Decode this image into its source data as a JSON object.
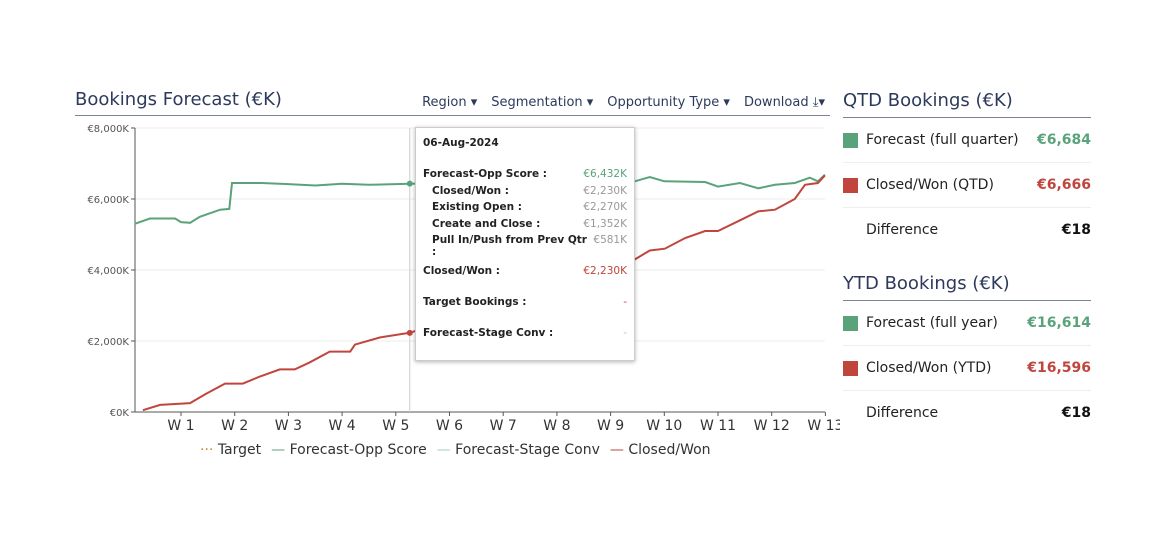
{
  "header": {
    "title": "Bookings Forecast (€K)",
    "filters": [
      "Region ▾",
      "Segmentation ▾",
      "Opportunity Type ▾",
      "Download ⤓▾"
    ]
  },
  "tooltip": {
    "date": "06-Aug-2024",
    "rows": [
      {
        "label": "Forecast-Opp Score :",
        "value": "€6,432K",
        "color": "#5aa37a",
        "indent": false,
        "gap": false
      },
      {
        "label": "Closed/Won :",
        "value": "€2,230K",
        "color": "#999",
        "indent": true,
        "gap": false
      },
      {
        "label": "Existing Open :",
        "value": "€2,270K",
        "color": "#999",
        "indent": true,
        "gap": false
      },
      {
        "label": "Create and Close :",
        "value": "€1,352K",
        "color": "#999",
        "indent": true,
        "gap": false
      },
      {
        "label": "Pull In/Push from Prev Qtr :",
        "value": "€581K",
        "color": "#999",
        "indent": true,
        "gap": false
      },
      {
        "label": "Closed/Won :",
        "value": "€2,230K",
        "color": "#c0453d",
        "indent": false,
        "gap": true
      },
      {
        "label": "Target Bookings :",
        "value": "-",
        "color": "#c0453d",
        "indent": false,
        "gap": true
      },
      {
        "label": "Forecast-Stage Conv :",
        "value": "-",
        "color": "#9cc",
        "indent": false,
        "gap": true
      }
    ]
  },
  "qtd": {
    "title": "QTD Bookings (€K)",
    "rows": [
      {
        "label": "Forecast (full quarter)",
        "value": "€6,684",
        "color": "#5aa37a"
      },
      {
        "label": "Closed/Won (QTD)",
        "value": "€6,666",
        "color": "#c0453d"
      },
      {
        "label": "Difference",
        "value": "€18",
        "color": "#111"
      }
    ]
  },
  "ytd": {
    "title": "YTD Bookings (€K)",
    "rows": [
      {
        "label": "Forecast (full year)",
        "value": "€16,614",
        "color": "#5aa37a"
      },
      {
        "label": "Closed/Won (YTD)",
        "value": "€16,596",
        "color": "#c0453d"
      },
      {
        "label": "Difference",
        "value": "€18",
        "color": "#111"
      }
    ]
  },
  "chart_data": {
    "type": "line",
    "title": "Bookings Forecast (€K)",
    "ylim": [
      0,
      8000
    ],
    "xlim": [
      0.14,
      13
    ],
    "yticks": [
      {
        "v": 0,
        "label": "€0K"
      },
      {
        "v": 2000,
        "label": "€2,000K"
      },
      {
        "v": 4000,
        "label": "€4,000K"
      },
      {
        "v": 6000,
        "label": "€6,000K"
      },
      {
        "v": 8000,
        "label": "€8,000K"
      }
    ],
    "xticks": [
      "W 1",
      "W 2",
      "W 3",
      "W 4",
      "W 5",
      "W 6",
      "W 7",
      "W 8",
      "W 9",
      "W 10",
      "W 11",
      "W 12",
      "W 13"
    ],
    "hover_x": 5.26,
    "legend": [
      {
        "name": "Target",
        "color": "#c98a3a",
        "dash": true
      },
      {
        "name": "Forecast-Opp Score",
        "color": "#5aa37a"
      },
      {
        "name": "Forecast-Stage Conv",
        "color": "#9fcfc0"
      },
      {
        "name": "Closed/Won",
        "color": "#c0453d"
      }
    ],
    "series": [
      {
        "name": "Forecast-Opp Score",
        "color": "#5aa37a",
        "points": [
          [
            0.14,
            5300
          ],
          [
            0.42,
            5450
          ],
          [
            0.89,
            5450
          ],
          [
            1.0,
            5350
          ],
          [
            1.17,
            5330
          ],
          [
            1.35,
            5500
          ],
          [
            1.73,
            5700
          ],
          [
            1.9,
            5720
          ],
          [
            1.95,
            6450
          ],
          [
            2.5,
            6450
          ],
          [
            3,
            6420
          ],
          [
            3.5,
            6380
          ],
          [
            4,
            6430
          ],
          [
            4.5,
            6400
          ],
          [
            5.26,
            6432
          ],
          [
            9.45,
            6500
          ],
          [
            9.73,
            6620
          ],
          [
            10.0,
            6500
          ],
          [
            10.76,
            6480
          ],
          [
            11.0,
            6350
          ],
          [
            11.41,
            6450
          ],
          [
            11.75,
            6300
          ],
          [
            12.06,
            6400
          ],
          [
            12.43,
            6450
          ],
          [
            12.71,
            6600
          ],
          [
            12.86,
            6500
          ],
          [
            12.99,
            6684
          ]
        ]
      },
      {
        "name": "Closed/Won",
        "color": "#c0453d",
        "points": [
          [
            0.29,
            50
          ],
          [
            0.61,
            200
          ],
          [
            1.17,
            250
          ],
          [
            1.45,
            500
          ],
          [
            1.82,
            800
          ],
          [
            2.15,
            800
          ],
          [
            2.47,
            1000
          ],
          [
            2.84,
            1200
          ],
          [
            3.12,
            1200
          ],
          [
            3.4,
            1400
          ],
          [
            3.77,
            1700
          ],
          [
            4.15,
            1700
          ],
          [
            4.24,
            1900
          ],
          [
            4.71,
            2100
          ],
          [
            5.26,
            2230
          ],
          [
            9.45,
            4300
          ],
          [
            9.73,
            4550
          ],
          [
            10.01,
            4600
          ],
          [
            10.39,
            4900
          ],
          [
            10.76,
            5100
          ],
          [
            11.0,
            5100
          ],
          [
            11.41,
            5400
          ],
          [
            11.75,
            5650
          ],
          [
            12.06,
            5700
          ],
          [
            12.43,
            6000
          ],
          [
            12.62,
            6400
          ],
          [
            12.86,
            6450
          ],
          [
            12.99,
            6666
          ]
        ]
      }
    ]
  }
}
